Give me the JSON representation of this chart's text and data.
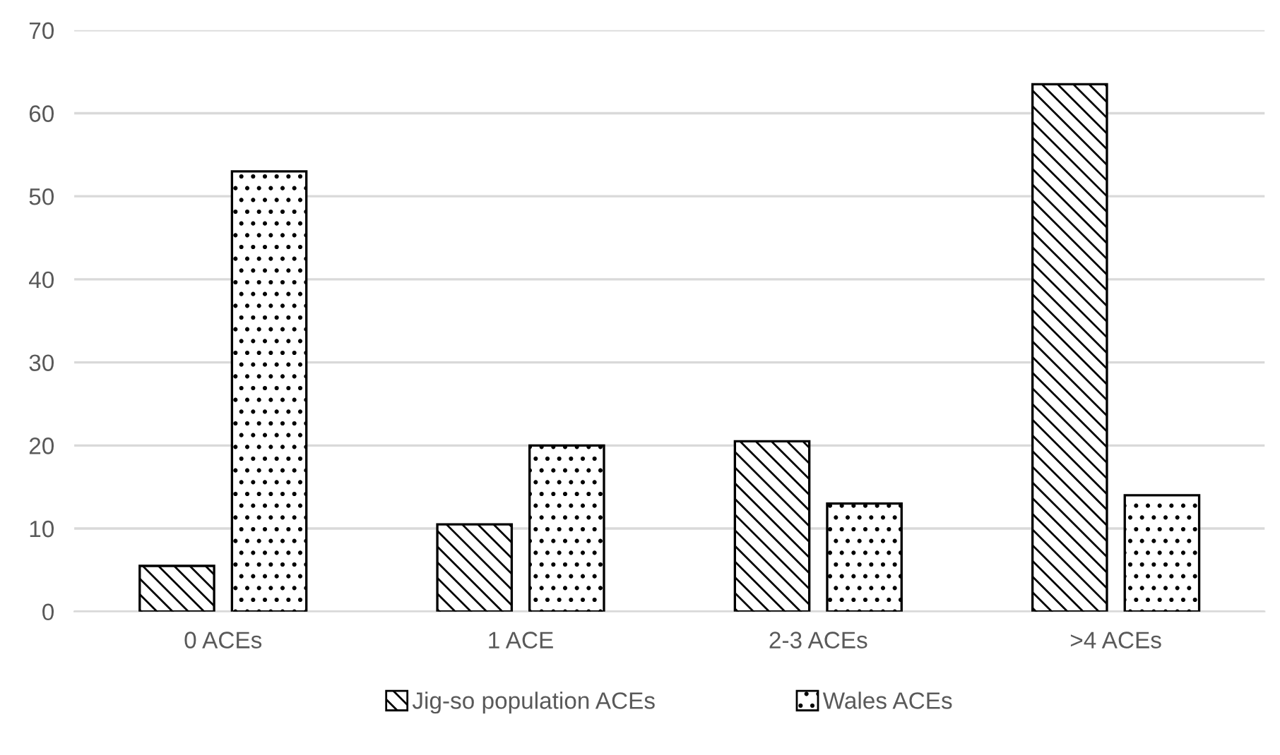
{
  "chart_data": {
    "type": "bar",
    "categories": [
      "0 ACEs",
      "1 ACE",
      "2-3 ACEs",
      ">4 ACEs"
    ],
    "series": [
      {
        "name": "Jig-so population ACEs",
        "color": "#000000",
        "values": [
          5.5,
          10.5,
          20.5,
          63.5
        ]
      },
      {
        "name": "Wales ACEs",
        "color": "#000000",
        "values": [
          53,
          20,
          13,
          14
        ]
      }
    ],
    "ylim": [
      0,
      70
    ],
    "yticks": [
      0,
      10,
      20,
      30,
      40,
      50,
      60,
      70
    ],
    "grid": "y",
    "legend": "bottom"
  }
}
